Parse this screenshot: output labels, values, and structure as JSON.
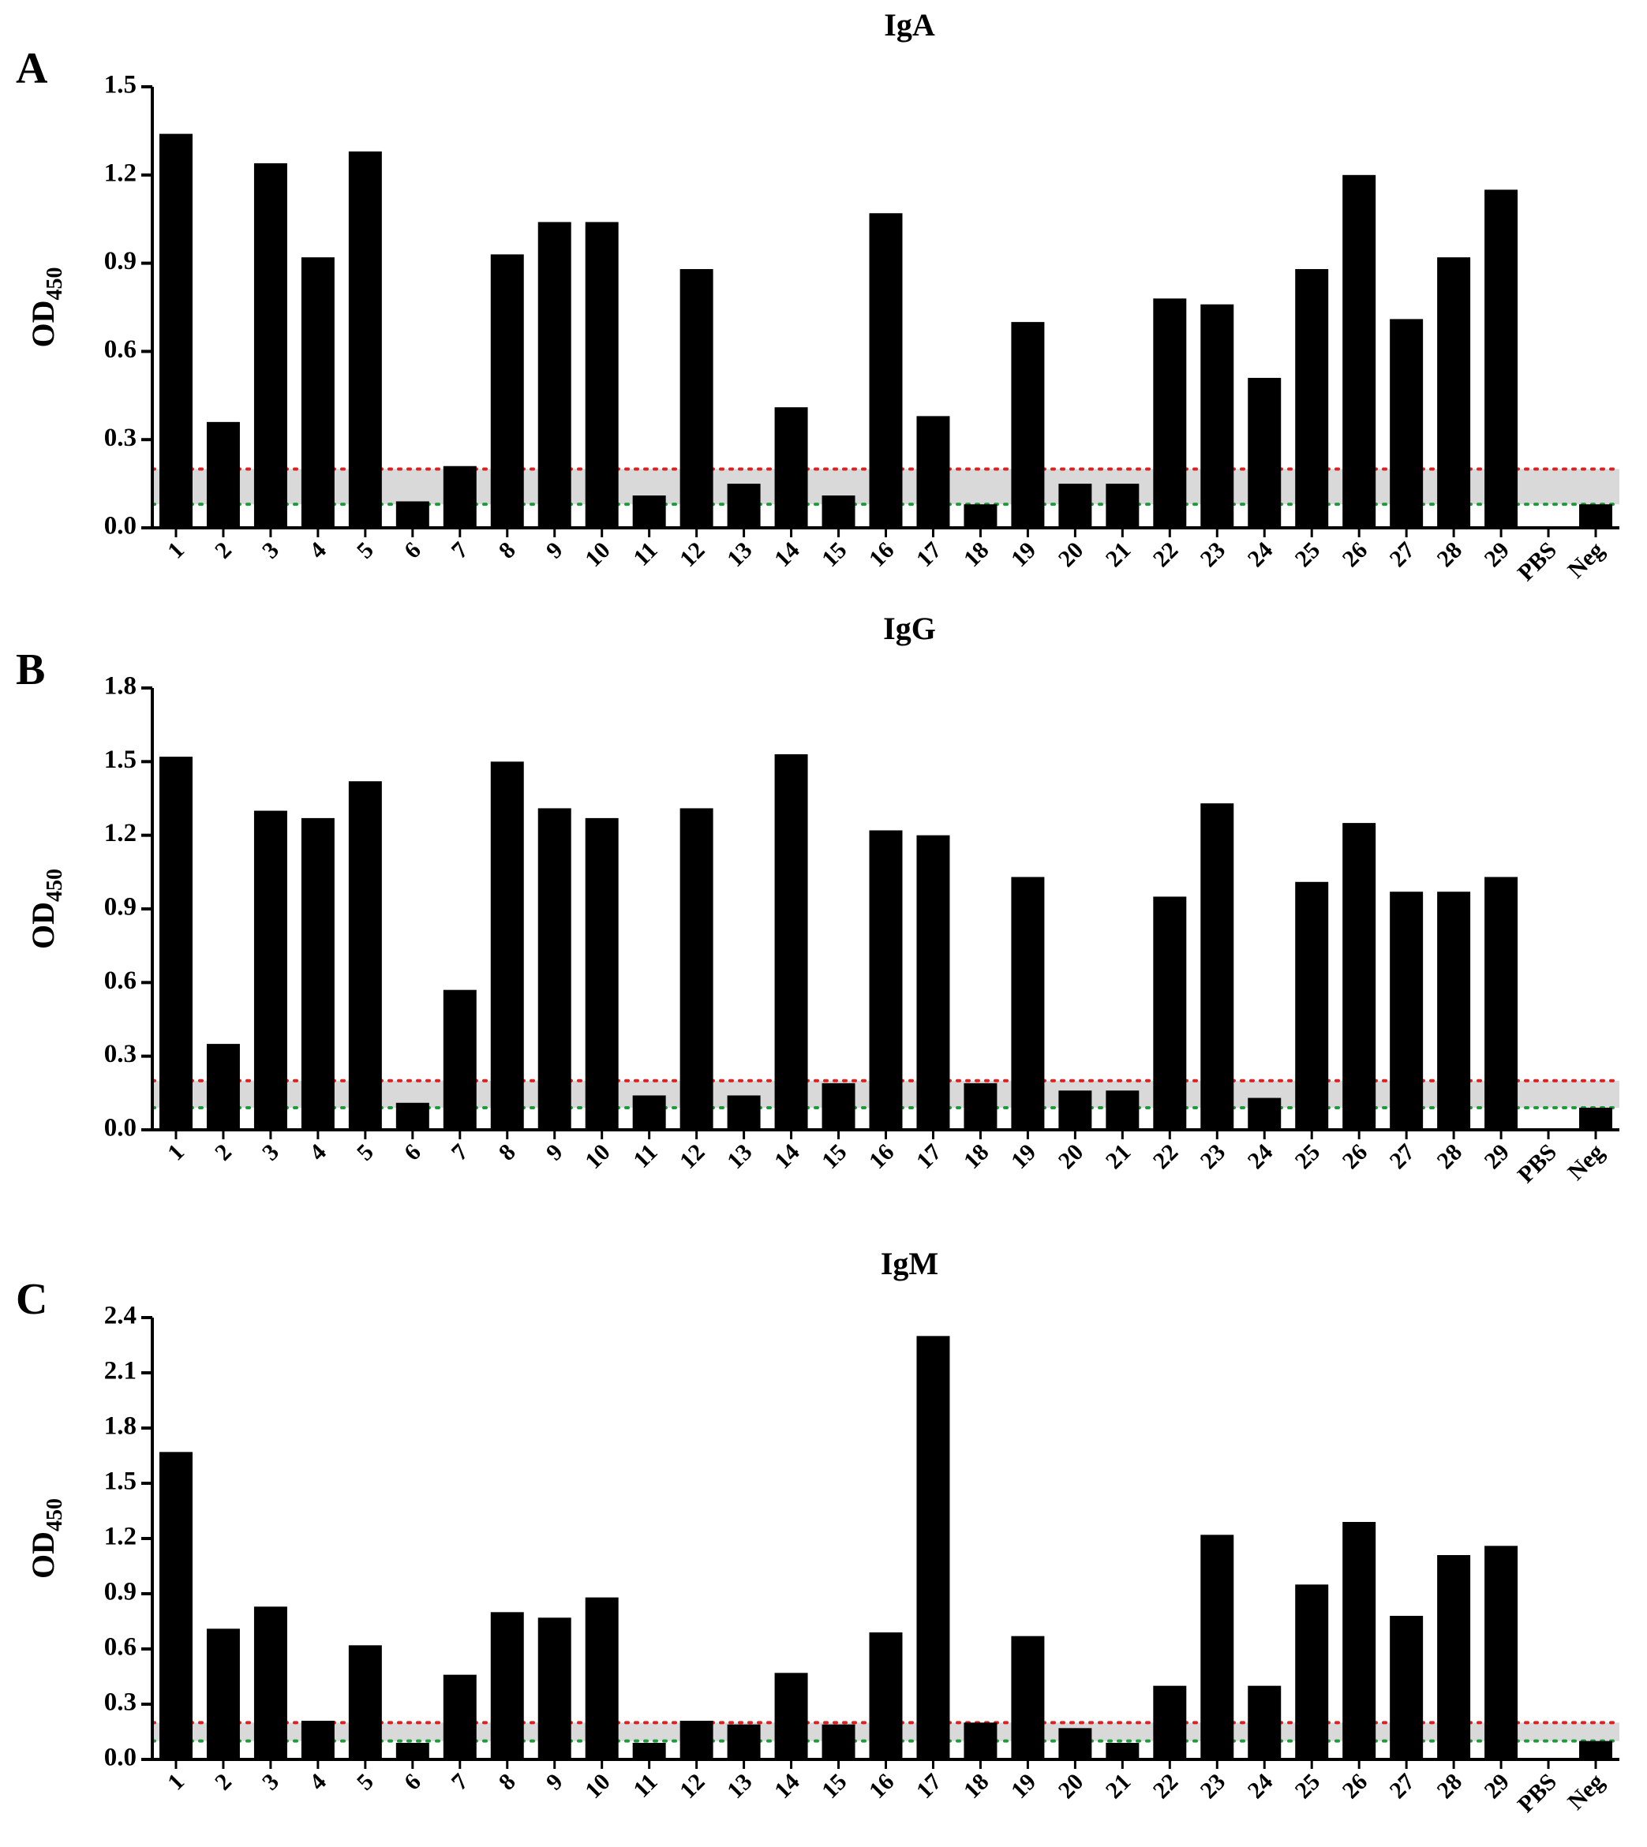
{
  "chart_data": [
    {
      "type": "bar",
      "panel_label": "A",
      "title": "IgA",
      "ylabel": "OD",
      "ylabel_subscript": "450",
      "categories": [
        "1",
        "2",
        "3",
        "4",
        "5",
        "6",
        "7",
        "8",
        "9",
        "10",
        "11",
        "12",
        "13",
        "14",
        "15",
        "16",
        "17",
        "18",
        "19",
        "20",
        "21",
        "22",
        "23",
        "24",
        "25",
        "26",
        "27",
        "28",
        "29",
        "PBS",
        "Neg"
      ],
      "values": [
        1.34,
        0.36,
        1.24,
        0.92,
        1.28,
        0.09,
        0.21,
        0.93,
        1.04,
        1.04,
        0.11,
        0.88,
        0.15,
        0.41,
        0.11,
        1.07,
        0.38,
        0.08,
        0.7,
        0.15,
        0.15,
        0.78,
        0.76,
        0.51,
        0.88,
        1.2,
        0.71,
        0.92,
        1.15,
        0,
        0.08
      ],
      "color": "#000000",
      "ylim": [
        0,
        1.5
      ],
      "yticks": [
        {
          "value": 0,
          "label": "0.0"
        },
        0.3,
        0.6,
        0.9,
        1.2,
        1.5
      ],
      "reference_lines": [
        {
          "value": 0.2,
          "color": "#e02020"
        },
        {
          "value": 0.08,
          "color": "#1a9e3a"
        }
      ],
      "band_color": "#d9d9d9"
    },
    {
      "type": "bar",
      "panel_label": "B",
      "title": "IgG",
      "ylabel": "OD",
      "ylabel_subscript": "450",
      "categories": [
        "1",
        "2",
        "3",
        "4",
        "5",
        "6",
        "7",
        "8",
        "9",
        "10",
        "11",
        "12",
        "13",
        "14",
        "15",
        "16",
        "17",
        "18",
        "19",
        "20",
        "21",
        "22",
        "23",
        "24",
        "25",
        "26",
        "27",
        "28",
        "29",
        "PBS",
        "Neg"
      ],
      "values": [
        1.52,
        0.35,
        1.3,
        1.27,
        1.42,
        0.11,
        0.57,
        1.5,
        1.31,
        1.27,
        0.14,
        1.31,
        0.14,
        1.53,
        0.19,
        1.22,
        1.2,
        0.19,
        1.03,
        0.16,
        0.16,
        0.95,
        1.33,
        0.13,
        1.01,
        1.25,
        0.97,
        0.97,
        1.03,
        0,
        0.09
      ],
      "color": "#000000",
      "ylim": [
        0,
        1.8
      ],
      "yticks": [
        {
          "value": 0,
          "label": "0.0"
        },
        0.3,
        0.6,
        0.9,
        1.2,
        1.5,
        1.8
      ],
      "reference_lines": [
        {
          "value": 0.2,
          "color": "#e02020"
        },
        {
          "value": 0.09,
          "color": "#1a9e3a"
        }
      ],
      "band_color": "#d9d9d9"
    },
    {
      "type": "bar",
      "panel_label": "C",
      "title": "IgM",
      "ylabel": "OD",
      "ylabel_subscript": "450",
      "categories": [
        "1",
        "2",
        "3",
        "4",
        "5",
        "6",
        "7",
        "8",
        "9",
        "10",
        "11",
        "12",
        "13",
        "14",
        "15",
        "16",
        "17",
        "18",
        "19",
        "20",
        "21",
        "22",
        "23",
        "24",
        "25",
        "26",
        "27",
        "28",
        "29",
        "PBS",
        "Neg"
      ],
      "values": [
        1.67,
        0.71,
        0.83,
        0.21,
        0.62,
        0.09,
        0.46,
        0.8,
        0.77,
        0.88,
        0.09,
        0.21,
        0.19,
        0.47,
        0.19,
        0.69,
        2.3,
        0.2,
        0.67,
        0.17,
        0.09,
        0.4,
        1.22,
        0.4,
        0.95,
        1.29,
        0.78,
        1.11,
        1.16,
        0,
        0.1
      ],
      "color": "#000000",
      "ylim": [
        0,
        2.4
      ],
      "yticks": [
        {
          "value": 0,
          "label": "0.0"
        },
        0.3,
        0.6,
        0.9,
        1.2,
        1.5,
        1.8,
        2.1,
        2.4
      ],
      "reference_lines": [
        {
          "value": 0.2,
          "color": "#e02020"
        },
        {
          "value": 0.1,
          "color": "#1a9e3a"
        }
      ],
      "band_color": "#d9d9d9"
    }
  ]
}
